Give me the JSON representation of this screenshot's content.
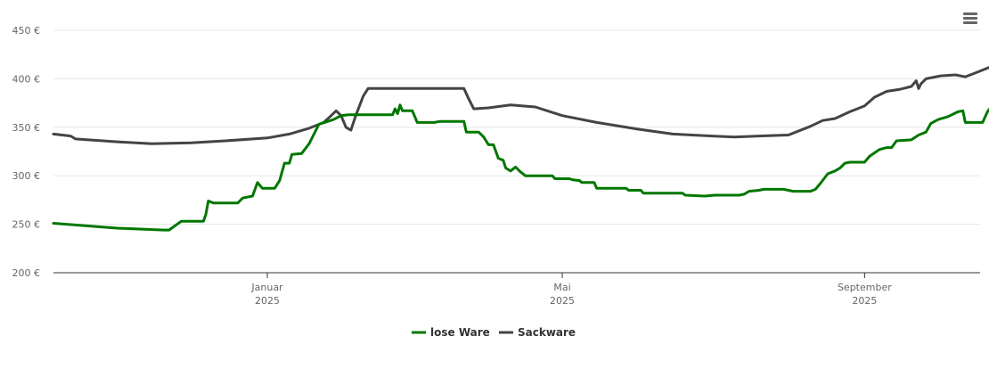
{
  "menu": {
    "icon": "hamburger-menu-icon"
  },
  "chart_data": {
    "type": "line",
    "title": "",
    "xlabel": "",
    "ylabel": "",
    "ylim": [
      200,
      450
    ],
    "y_ticks": [
      200,
      250,
      300,
      350,
      400,
      450
    ],
    "y_tick_labels": [
      "200 €",
      "250 €",
      "300 €",
      "350 €",
      "400 €",
      "450 €"
    ],
    "x_range": [
      "2024-10-06",
      "2025-10-18"
    ],
    "x_ticks": [
      {
        "x": "2025-01-01",
        "label_month": "Januar",
        "label_year": "2025"
      },
      {
        "x": "2025-05-01",
        "label_month": "Mai",
        "label_year": "2025"
      },
      {
        "x": "2025-09-01",
        "label_month": "September",
        "label_year": "2025"
      }
    ],
    "grid": true,
    "legend_position": "bottom-center",
    "series": [
      {
        "name": "lose Ware",
        "color": "#007700",
        "points": [
          [
            "2024-10-06",
            251
          ],
          [
            "2024-11-01",
            246
          ],
          [
            "2024-11-20",
            244
          ],
          [
            "2024-11-22",
            244
          ],
          [
            "2024-11-27",
            253
          ],
          [
            "2024-12-03",
            253
          ],
          [
            "2024-12-06",
            253
          ],
          [
            "2024-12-07",
            260
          ],
          [
            "2024-12-08",
            274
          ],
          [
            "2024-12-10",
            272
          ],
          [
            "2024-12-15",
            272
          ],
          [
            "2024-12-20",
            272
          ],
          [
            "2024-12-22",
            277
          ],
          [
            "2024-12-26",
            279
          ],
          [
            "2024-12-28",
            293
          ],
          [
            "2024-12-30",
            287
          ],
          [
            "2025-01-04",
            287
          ],
          [
            "2025-01-06",
            295
          ],
          [
            "2025-01-08",
            313
          ],
          [
            "2025-01-10",
            313
          ],
          [
            "2025-01-11",
            322
          ],
          [
            "2025-01-15",
            323
          ],
          [
            "2025-01-18",
            333
          ],
          [
            "2025-01-20",
            343
          ],
          [
            "2025-01-22",
            353
          ],
          [
            "2025-01-28",
            358
          ],
          [
            "2025-01-31",
            362
          ],
          [
            "2025-02-03",
            363
          ],
          [
            "2025-02-21",
            363
          ],
          [
            "2025-02-22",
            369
          ],
          [
            "2025-02-23",
            364
          ],
          [
            "2025-02-24",
            373
          ],
          [
            "2025-02-25",
            367
          ],
          [
            "2025-03-01",
            367
          ],
          [
            "2025-03-03",
            355
          ],
          [
            "2025-03-08",
            355
          ],
          [
            "2025-03-10",
            355
          ],
          [
            "2025-03-12",
            356
          ],
          [
            "2025-03-22",
            356
          ],
          [
            "2025-03-23",
            345
          ],
          [
            "2025-03-28",
            345
          ],
          [
            "2025-03-30",
            340
          ],
          [
            "2025-04-01",
            332
          ],
          [
            "2025-04-03",
            332
          ],
          [
            "2025-04-05",
            318
          ],
          [
            "2025-04-07",
            316
          ],
          [
            "2025-04-08",
            308
          ],
          [
            "2025-04-10",
            305
          ],
          [
            "2025-04-12",
            309
          ],
          [
            "2025-04-14",
            304
          ],
          [
            "2025-04-16",
            300
          ],
          [
            "2025-04-27",
            300
          ],
          [
            "2025-04-28",
            297
          ],
          [
            "2025-05-04",
            297
          ],
          [
            "2025-05-05",
            296
          ],
          [
            "2025-05-08",
            295
          ],
          [
            "2025-05-09",
            293
          ],
          [
            "2025-05-14",
            293
          ],
          [
            "2025-05-15",
            287
          ],
          [
            "2025-05-27",
            287
          ],
          [
            "2025-05-28",
            285
          ],
          [
            "2025-06-02",
            285
          ],
          [
            "2025-06-03",
            282
          ],
          [
            "2025-06-19",
            282
          ],
          [
            "2025-06-20",
            280
          ],
          [
            "2025-06-28",
            279
          ],
          [
            "2025-07-02",
            280
          ],
          [
            "2025-07-12",
            280
          ],
          [
            "2025-07-14",
            281
          ],
          [
            "2025-07-16",
            284
          ],
          [
            "2025-07-20",
            285
          ],
          [
            "2025-07-22",
            286
          ],
          [
            "2025-07-30",
            286
          ],
          [
            "2025-08-01",
            285
          ],
          [
            "2025-08-03",
            284
          ],
          [
            "2025-08-10",
            284
          ],
          [
            "2025-08-12",
            286
          ],
          [
            "2025-08-14",
            292
          ],
          [
            "2025-08-17",
            302
          ],
          [
            "2025-08-20",
            305
          ],
          [
            "2025-08-22",
            308
          ],
          [
            "2025-08-24",
            313
          ],
          [
            "2025-08-26",
            314
          ],
          [
            "2025-09-01",
            314
          ],
          [
            "2025-09-03",
            320
          ],
          [
            "2025-09-07",
            327
          ],
          [
            "2025-09-10",
            329
          ],
          [
            "2025-09-12",
            329
          ],
          [
            "2025-09-14",
            336
          ],
          [
            "2025-09-20",
            337
          ],
          [
            "2025-09-23",
            342
          ],
          [
            "2025-09-26",
            345
          ],
          [
            "2025-09-28",
            354
          ],
          [
            "2025-10-01",
            358
          ],
          [
            "2025-10-05",
            361
          ],
          [
            "2025-10-09",
            366
          ],
          [
            "2025-10-11",
            367
          ],
          [
            "2025-10-12",
            355
          ],
          [
            "2025-10-19",
            355
          ],
          [
            "2025-10-21",
            366
          ],
          [
            "2025-10-23",
            373
          ],
          [
            "2025-10-25",
            373
          ],
          [
            "2025-10-28",
            379
          ]
        ]
      },
      {
        "name": "Sackware",
        "color": "#444444",
        "points": [
          [
            "2024-10-06",
            343
          ],
          [
            "2024-10-13",
            341
          ],
          [
            "2024-10-15",
            338
          ],
          [
            "2024-11-01",
            335
          ],
          [
            "2024-11-15",
            333
          ],
          [
            "2024-12-01",
            334
          ],
          [
            "2024-12-15",
            336
          ],
          [
            "2025-01-01",
            339
          ],
          [
            "2025-01-10",
            343
          ],
          [
            "2025-01-18",
            349
          ],
          [
            "2025-01-24",
            355
          ],
          [
            "2025-01-27",
            362
          ],
          [
            "2025-01-29",
            367
          ],
          [
            "2025-01-31",
            362
          ],
          [
            "2025-02-02",
            350
          ],
          [
            "2025-02-04",
            347
          ],
          [
            "2025-02-06",
            362
          ],
          [
            "2025-02-09",
            382
          ],
          [
            "2025-02-11",
            390
          ],
          [
            "2025-03-22",
            390
          ],
          [
            "2025-03-24",
            379
          ],
          [
            "2025-03-26",
            369
          ],
          [
            "2025-04-01",
            370
          ],
          [
            "2025-04-10",
            373
          ],
          [
            "2025-04-20",
            371
          ],
          [
            "2025-05-01",
            362
          ],
          [
            "2025-05-15",
            355
          ],
          [
            "2025-06-01",
            348
          ],
          [
            "2025-06-15",
            343
          ],
          [
            "2025-07-01",
            341
          ],
          [
            "2025-07-10",
            340
          ],
          [
            "2025-07-20",
            341
          ],
          [
            "2025-08-01",
            342
          ],
          [
            "2025-08-10",
            351
          ],
          [
            "2025-08-15",
            357
          ],
          [
            "2025-08-20",
            359
          ],
          [
            "2025-08-26",
            366
          ],
          [
            "2025-09-01",
            372
          ],
          [
            "2025-09-05",
            381
          ],
          [
            "2025-09-10",
            387
          ],
          [
            "2025-09-15",
            389
          ],
          [
            "2025-09-20",
            392
          ],
          [
            "2025-09-22",
            398
          ],
          [
            "2025-09-23",
            390
          ],
          [
            "2025-09-24",
            395
          ],
          [
            "2025-09-26",
            400
          ],
          [
            "2025-10-02",
            403
          ],
          [
            "2025-10-08",
            404
          ],
          [
            "2025-10-10",
            403
          ],
          [
            "2025-10-12",
            402
          ],
          [
            "2025-10-15",
            405
          ],
          [
            "2025-10-19",
            409
          ],
          [
            "2025-10-21",
            411
          ],
          [
            "2025-10-23",
            413
          ],
          [
            "2025-10-25",
            413
          ],
          [
            "2025-10-26",
            409
          ],
          [
            "2025-10-28",
            409
          ]
        ]
      }
    ]
  }
}
